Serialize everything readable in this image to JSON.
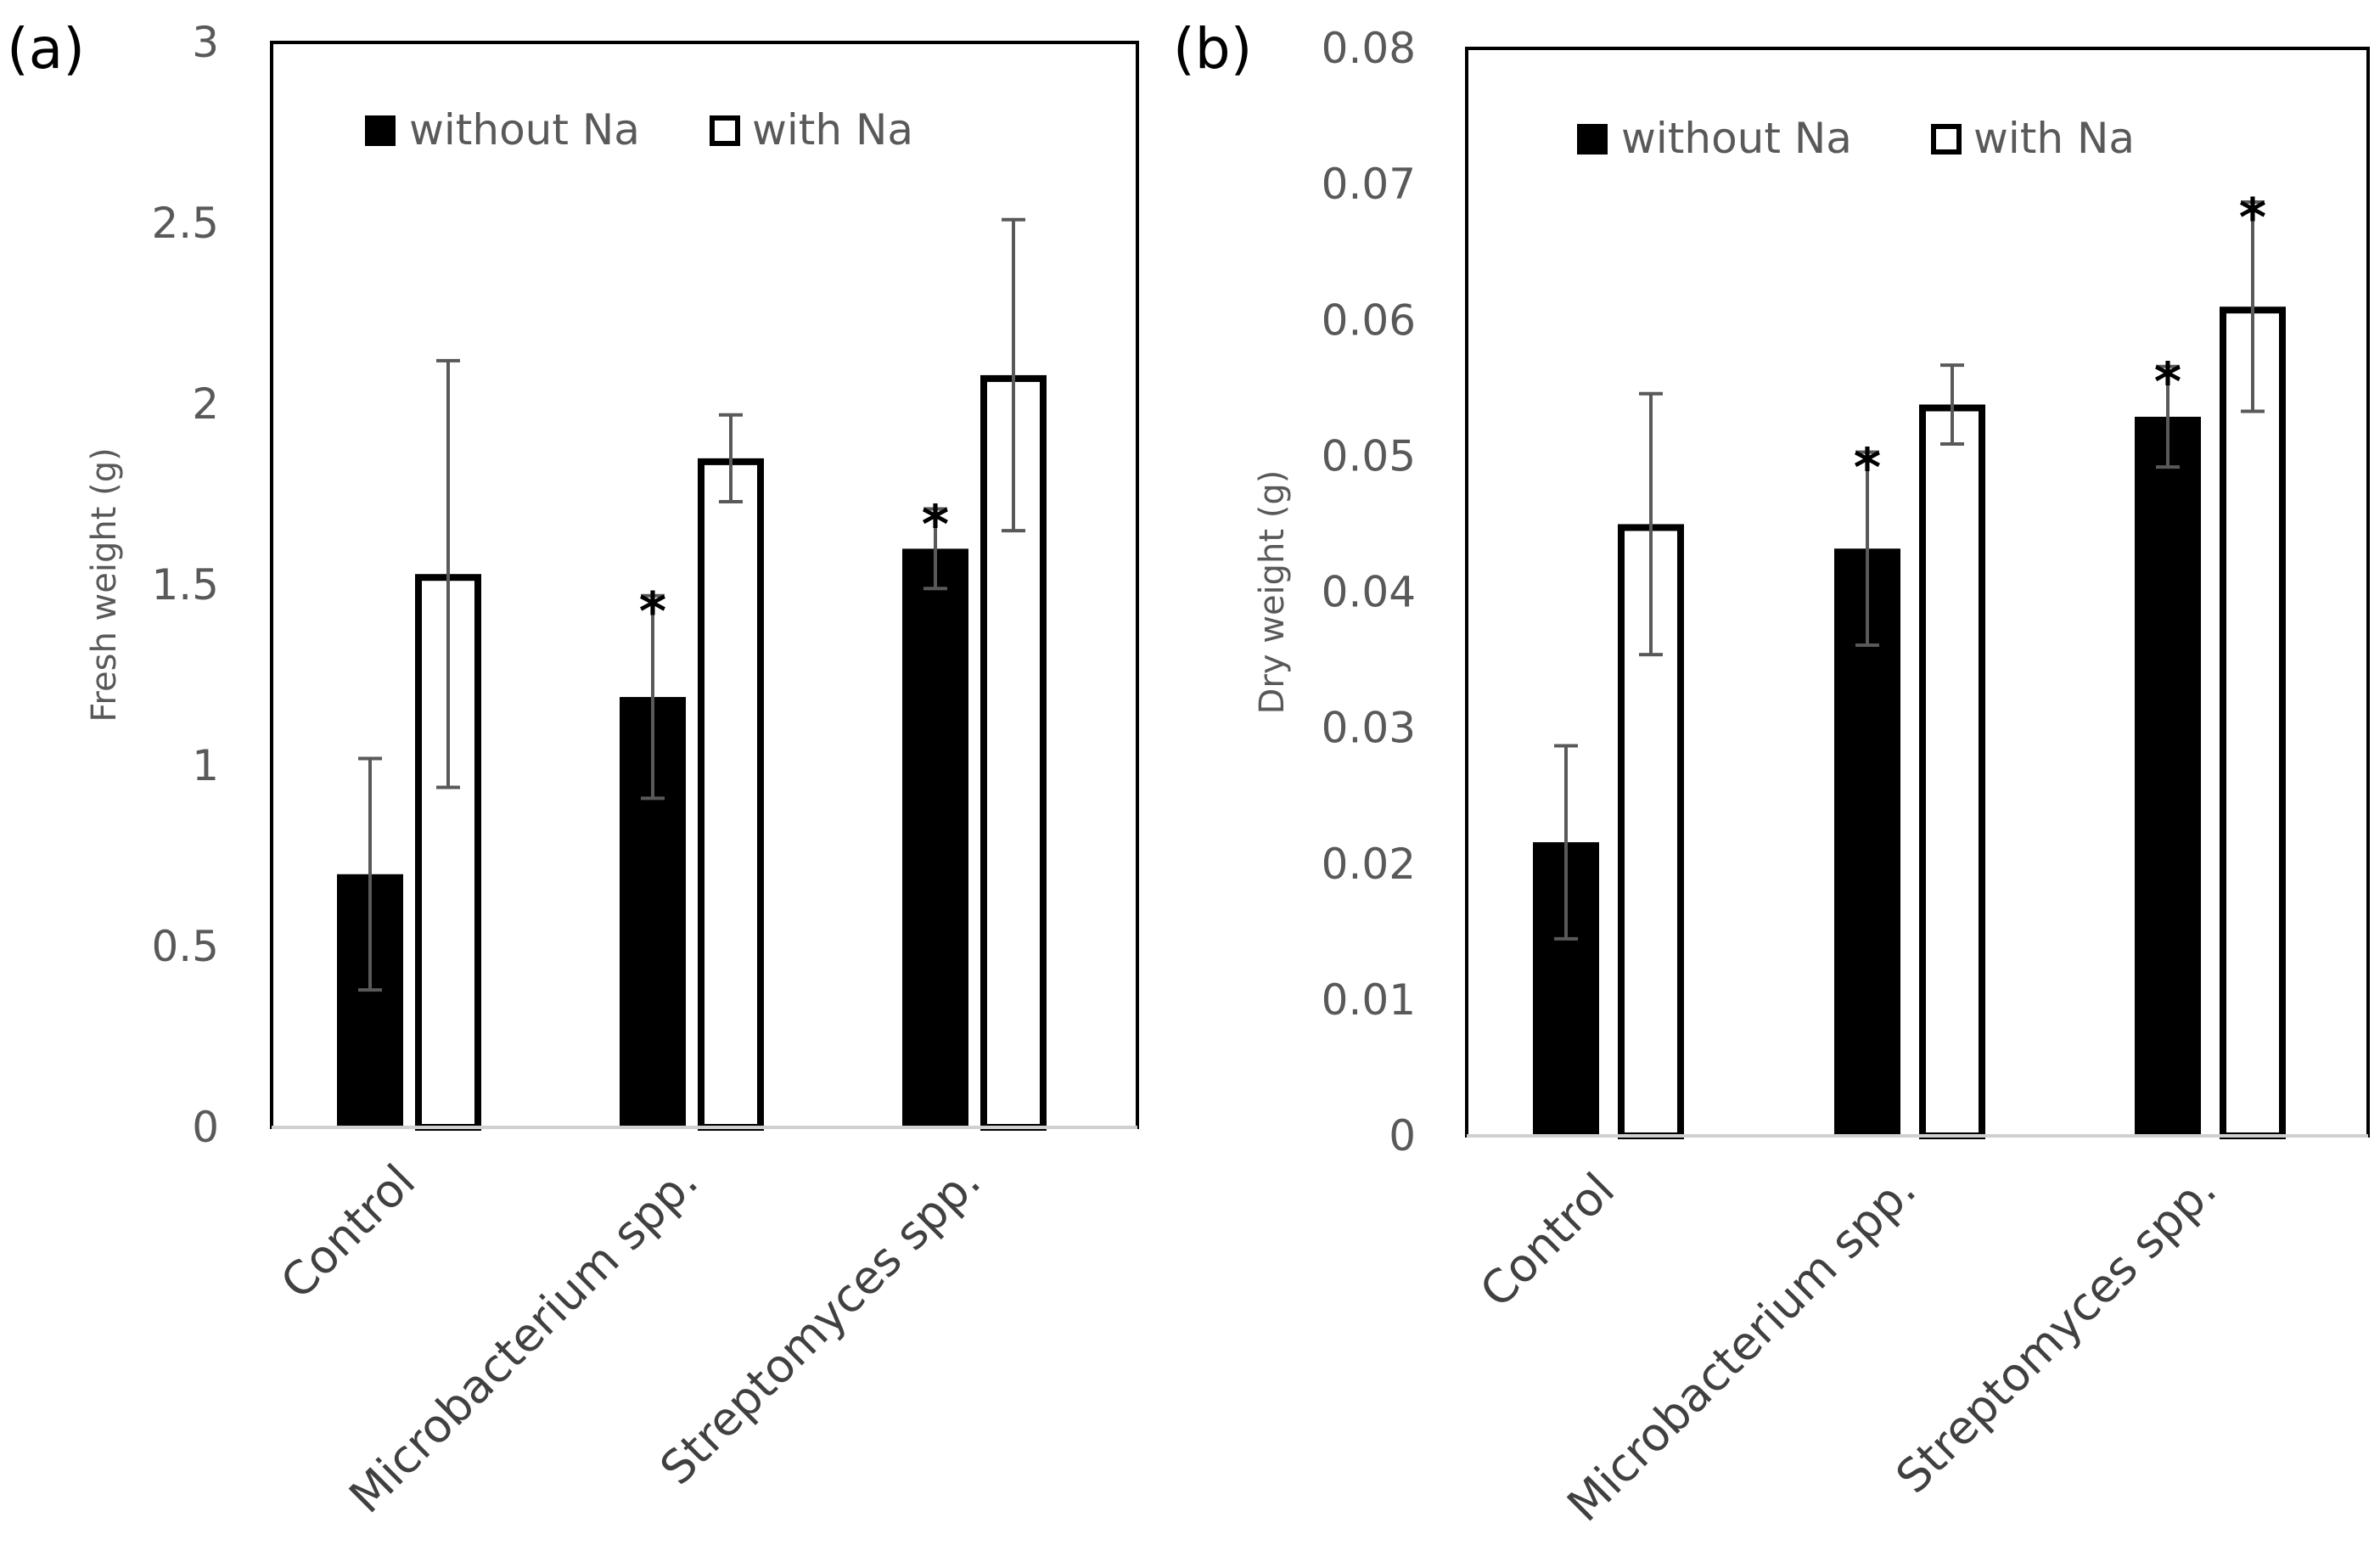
{
  "chart_data": [
    {
      "type": "bar",
      "panel_label": "(a)",
      "title": "",
      "xlabel": "",
      "ylabel": "Fresh weight (g)",
      "ylim": [
        0,
        3
      ],
      "yticks": [
        0,
        0.5,
        1,
        1.5,
        2,
        2.5,
        3
      ],
      "ytick_labels": [
        "0",
        "0.5",
        "1",
        "1.5",
        "2",
        "2.5",
        "3"
      ],
      "categories": [
        "Control",
        "Microbacterium spp.",
        "Streptomyces spp."
      ],
      "legend_position": "top",
      "series": [
        {
          "name": "without Na",
          "style": "filled",
          "values": [
            0.7,
            1.19,
            1.6
          ],
          "errors": [
            0.32,
            0.28,
            0.11
          ],
          "significant": [
            false,
            true,
            true
          ]
        },
        {
          "name": "with Na",
          "style": "outline",
          "values": [
            1.53,
            1.85,
            2.08
          ],
          "errors": [
            0.59,
            0.12,
            0.43
          ],
          "significant": [
            false,
            false,
            false
          ]
        }
      ],
      "annotation_symbol": "*"
    },
    {
      "type": "bar",
      "panel_label": "(b)",
      "title": "",
      "xlabel": "",
      "ylabel": "Dry weight (g)",
      "ylim": [
        0,
        0.08
      ],
      "yticks": [
        0,
        0.01,
        0.02,
        0.03,
        0.04,
        0.05,
        0.06,
        0.07,
        0.08
      ],
      "ytick_labels": [
        "0",
        "0.01",
        "0.02",
        "0.03",
        "0.04",
        "0.05",
        "0.06",
        "0.07",
        "0.08"
      ],
      "categories": [
        "Control",
        "Microbacterium spp.",
        "Streptomyces spp."
      ],
      "legend_position": "top",
      "series": [
        {
          "name": "without Na",
          "style": "filled",
          "values": [
            0.0216,
            0.0432,
            0.0529
          ],
          "errors": [
            0.0071,
            0.0071,
            0.0037
          ],
          "significant": [
            false,
            true,
            true
          ]
        },
        {
          "name": "with Na",
          "style": "outline",
          "values": [
            0.045,
            0.0538,
            0.061
          ],
          "errors": [
            0.0096,
            0.0029,
            0.0077
          ],
          "significant": [
            false,
            false,
            true
          ]
        }
      ],
      "annotation_symbol": "*"
    }
  ],
  "colors": {
    "filled_bar": "#000000",
    "outline_bar": "#ffffff",
    "error_bar": "#595959",
    "axis_baseline": "#d0d0d0",
    "frame": "#000000"
  }
}
